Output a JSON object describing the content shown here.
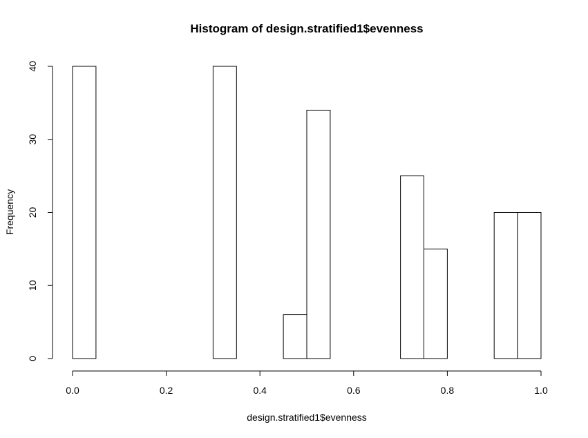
{
  "chart_data": {
    "type": "bar",
    "title": "Histogram of design.stratified1$evenness",
    "xlabel": "design.stratified1$evenness",
    "ylabel": "Frequency",
    "bin_width": 0.05,
    "bins": [
      {
        "start": 0.0,
        "end": 0.05,
        "count": 40
      },
      {
        "start": 0.05,
        "end": 0.1,
        "count": 0
      },
      {
        "start": 0.1,
        "end": 0.15,
        "count": 0
      },
      {
        "start": 0.15,
        "end": 0.2,
        "count": 0
      },
      {
        "start": 0.2,
        "end": 0.25,
        "count": 0
      },
      {
        "start": 0.25,
        "end": 0.3,
        "count": 0
      },
      {
        "start": 0.3,
        "end": 0.35,
        "count": 40
      },
      {
        "start": 0.35,
        "end": 0.4,
        "count": 0
      },
      {
        "start": 0.4,
        "end": 0.45,
        "count": 0
      },
      {
        "start": 0.45,
        "end": 0.5,
        "count": 6
      },
      {
        "start": 0.5,
        "end": 0.55,
        "count": 34
      },
      {
        "start": 0.55,
        "end": 0.6,
        "count": 0
      },
      {
        "start": 0.6,
        "end": 0.65,
        "count": 0
      },
      {
        "start": 0.65,
        "end": 0.7,
        "count": 0
      },
      {
        "start": 0.7,
        "end": 0.75,
        "count": 25
      },
      {
        "start": 0.75,
        "end": 0.8,
        "count": 15
      },
      {
        "start": 0.8,
        "end": 0.85,
        "count": 0
      },
      {
        "start": 0.85,
        "end": 0.9,
        "count": 0
      },
      {
        "start": 0.9,
        "end": 0.95,
        "count": 20
      },
      {
        "start": 0.95,
        "end": 1.0,
        "count": 20
      }
    ],
    "xlim": [
      0,
      1
    ],
    "ylim": [
      0,
      40
    ],
    "x_ticks": [
      {
        "value": 0.0,
        "label": "0.0"
      },
      {
        "value": 0.2,
        "label": "0.2"
      },
      {
        "value": 0.4,
        "label": "0.4"
      },
      {
        "value": 0.6,
        "label": "0.6"
      },
      {
        "value": 0.8,
        "label": "0.8"
      },
      {
        "value": 1.0,
        "label": "1.0"
      }
    ],
    "y_ticks": [
      {
        "value": 0,
        "label": "0"
      },
      {
        "value": 10,
        "label": "10"
      },
      {
        "value": 20,
        "label": "20"
      },
      {
        "value": 30,
        "label": "30"
      },
      {
        "value": 40,
        "label": "40"
      }
    ],
    "grid": false,
    "bar_fill": "#ffffff",
    "bar_stroke": "#000000"
  }
}
